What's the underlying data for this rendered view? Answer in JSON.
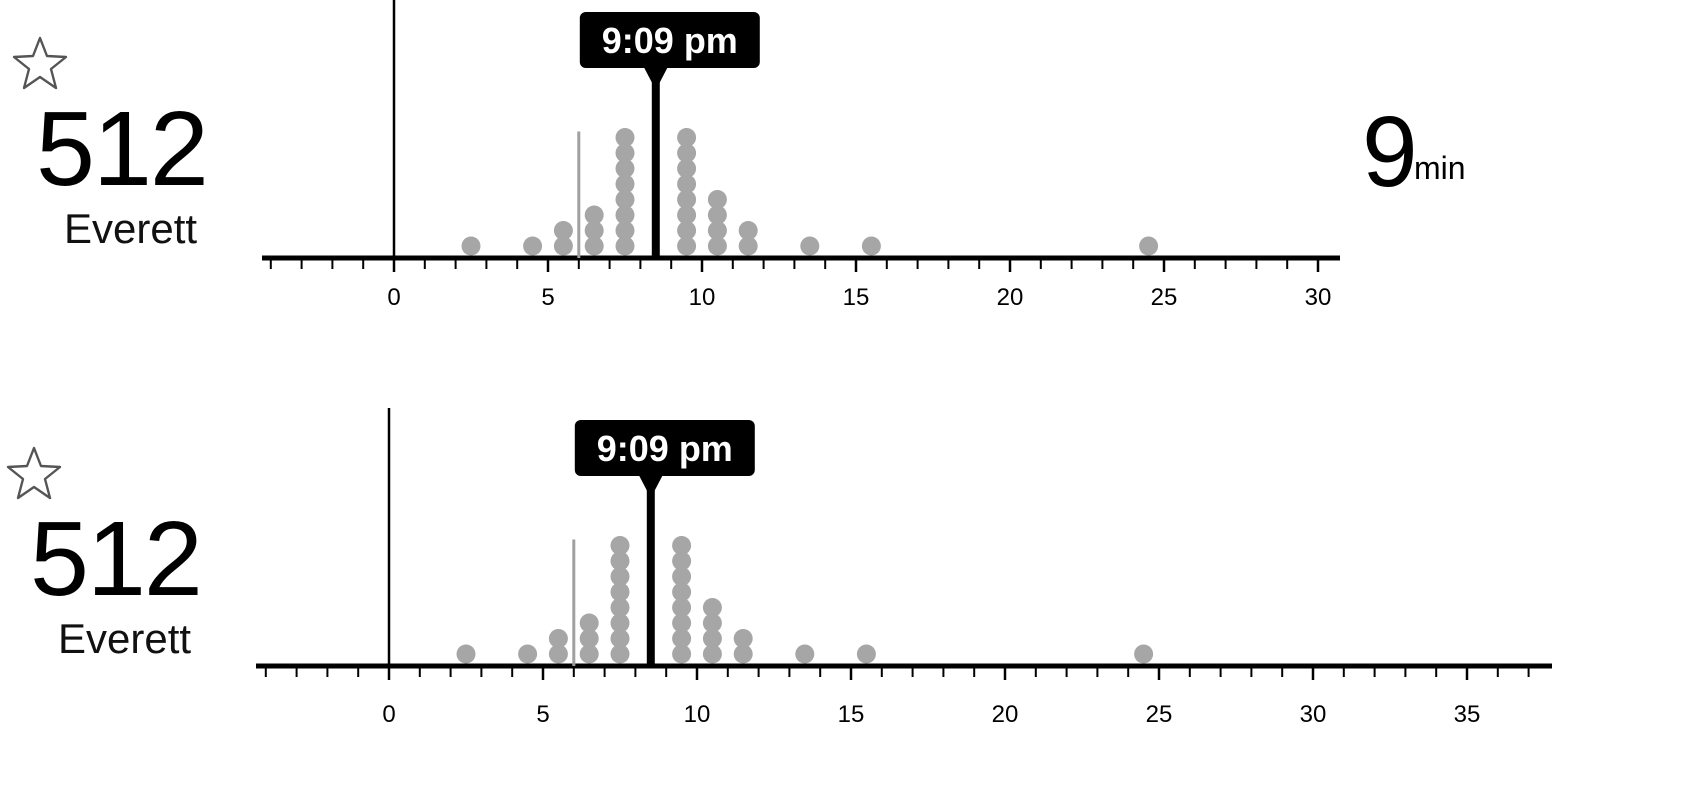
{
  "rows": [
    {
      "favorite_icon": "star-outline-icon",
      "route_number": "512",
      "destination": "Everett",
      "departure_label": "9:09 pm",
      "eta_value": "9",
      "eta_unit": "min",
      "axis": {
        "min": -4.3,
        "max": 30.8,
        "tick_labels": [
          "0",
          "5",
          "10",
          "15",
          "20",
          "25",
          "30"
        ],
        "tick_values": [
          0,
          5,
          10,
          15,
          20,
          25,
          30
        ]
      },
      "dot_columns": [
        {
          "x": 2.5,
          "count": 1
        },
        {
          "x": 4.5,
          "count": 1
        },
        {
          "x": 5.5,
          "count": 2
        },
        {
          "x": 6.5,
          "count": 3
        },
        {
          "x": 7.5,
          "count": 8
        },
        {
          "x": 9.5,
          "count": 8
        },
        {
          "x": 10.5,
          "count": 4
        },
        {
          "x": 11.5,
          "count": 2
        },
        {
          "x": 13.5,
          "count": 1
        },
        {
          "x": 15.5,
          "count": 1
        },
        {
          "x": 24.5,
          "count": 1
        }
      ],
      "now_marker": 0,
      "scheduled_marker": 6,
      "departure_marker": 8.5
    },
    {
      "favorite_icon": "star-outline-icon",
      "route_number": "512",
      "destination": "Everett",
      "departure_label": "9:09 pm",
      "eta_value": "",
      "eta_unit": "",
      "axis": {
        "min": -4.3,
        "max": 37.5,
        "tick_labels": [
          "0",
          "5",
          "10",
          "15",
          "20",
          "25",
          "30",
          "35"
        ],
        "tick_values": [
          0,
          5,
          10,
          15,
          20,
          25,
          30,
          35
        ]
      },
      "dot_columns": [
        {
          "x": 2.5,
          "count": 1
        },
        {
          "x": 4.5,
          "count": 1
        },
        {
          "x": 5.5,
          "count": 2
        },
        {
          "x": 6.5,
          "count": 3
        },
        {
          "x": 7.5,
          "count": 8
        },
        {
          "x": 9.5,
          "count": 8
        },
        {
          "x": 10.5,
          "count": 4
        },
        {
          "x": 11.5,
          "count": 2
        },
        {
          "x": 13.5,
          "count": 1
        },
        {
          "x": 15.5,
          "count": 1
        },
        {
          "x": 24.5,
          "count": 1
        }
      ],
      "now_marker": 0,
      "scheduled_marker": 6,
      "departure_marker": 8.5
    }
  ],
  "colors": {
    "dot": "#a6a6a6",
    "axis": "#000000",
    "scheduled_line": "#a0a0a0",
    "label_bg": "#000000",
    "label_text": "#ffffff"
  }
}
